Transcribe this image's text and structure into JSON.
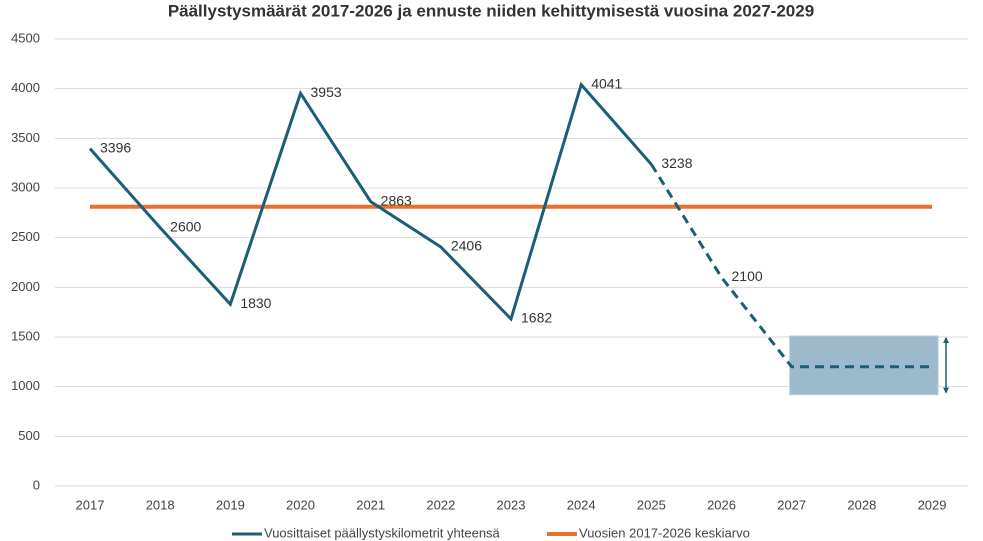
{
  "chart_data": {
    "type": "line",
    "title": "Päällystysmäärät 2017-2026 ja ennuste niiden kehittymisestä vuosina 2027-2029",
    "categories": [
      "2017",
      "2018",
      "2019",
      "2020",
      "2021",
      "2022",
      "2023",
      "2024",
      "2025",
      "2026",
      "2027",
      "2028",
      "2029"
    ],
    "series": [
      {
        "name": "Vuosittaiset päällystyskilometrit yhteensä",
        "color": "#1c5d78",
        "values": [
          3396,
          2600,
          1830,
          3953,
          2863,
          2406,
          1682,
          4041,
          3238,
          2100,
          1200,
          1200,
          1200
        ],
        "dashed_from_category": "2025",
        "data_labels_through_category": "2026"
      },
      {
        "name": "Vuosien 2017-2026 keskiarvo",
        "color": "#e8702a",
        "values": [
          2811,
          2811,
          2811,
          2811,
          2811,
          2811,
          2811,
          2811,
          2811,
          2811,
          2811,
          2811,
          2811
        ]
      }
    ],
    "forecast_range": {
      "from_category": "2027",
      "to_category": "2029",
      "low": 920,
      "high": 1510,
      "color": "#9dbacb"
    },
    "ylim": [
      0,
      4500
    ],
    "yticks": [
      0,
      500,
      1000,
      1500,
      2000,
      2500,
      3000,
      3500,
      4000,
      4500
    ],
    "grid": true
  }
}
